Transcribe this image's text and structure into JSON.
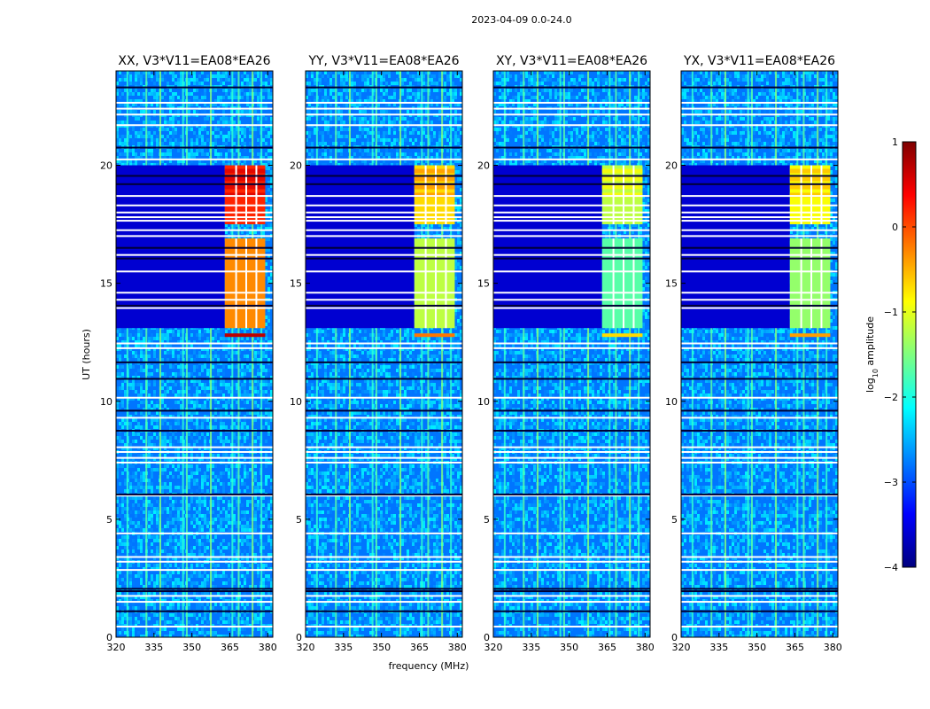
{
  "chart_data": {
    "type": "heatmap",
    "suptitle": "2023-04-09 0.0-24.0",
    "xlabel": "frequency (MHz)",
    "ylabel": "UT (hours)",
    "xlim": [
      320,
      382
    ],
    "ylim": [
      0,
      24
    ],
    "xticks": [
      320,
      335,
      350,
      365,
      380
    ],
    "yticks": [
      0,
      5,
      10,
      15,
      20
    ],
    "panels": [
      {
        "title": "XX, V3*V11=EA08*EA26",
        "burst_level": 0.2
      },
      {
        "title": "YY, V3*V11=EA08*EA26",
        "burst_level": -0.7
      },
      {
        "title": "XY, V3*V11=EA08*EA26",
        "burst_level": -1.2
      },
      {
        "title": "YX, V3*V11=EA08*EA26",
        "burst_level": -0.9
      }
    ],
    "burst_band_mhz": [
      363,
      379
    ],
    "burst_windows_ut": [
      [
        13.1,
        16.9
      ],
      [
        17.5,
        20.0
      ]
    ],
    "burst_subband_gaps_mhz": [
      367.5,
      371.5,
      375.5
    ],
    "strong_line_ut": 12.8,
    "background_level": -2.8,
    "flagged_ut_white": [
      0.45,
      1.5,
      1.75,
      2.85,
      3.2,
      3.4,
      4.4,
      6.0,
      7.4,
      7.6,
      7.85,
      8.05,
      9.3,
      10.15,
      12.25,
      12.45,
      13.95,
      14.3,
      14.6,
      15.5,
      16.2,
      17.0,
      17.25,
      17.65,
      17.8,
      18.0,
      18.3,
      18.7,
      20.25,
      21.7,
      22.15,
      22.4,
      22.65
    ],
    "flagged_ut_dark": [
      1.1,
      1.95,
      2.05,
      6.05,
      8.75,
      9.6,
      10.95,
      11.65,
      14.05,
      16.05,
      16.5,
      19.2,
      19.55,
      20.75,
      23.3
    ],
    "rfi_lines_mhz": [
      324.5,
      332.0,
      337.5,
      346.5,
      348.0,
      357.5,
      366.0,
      368.5,
      374.0,
      377.5
    ],
    "colorbar": {
      "label_prefix": "log",
      "label_sub": "10",
      "label_suffix": " amplitude",
      "min": -4,
      "max": 1,
      "ticks": [
        -4,
        -3,
        -2,
        -1,
        0,
        1
      ],
      "tick_labels": [
        "−4",
        "−3",
        "−2",
        "−1",
        "0",
        "1"
      ],
      "colors": [
        "#00007f",
        "#0000ff",
        "#007fff",
        "#00ffff",
        "#7fff7f",
        "#ffff00",
        "#ff7f00",
        "#ff0000",
        "#7f0000"
      ]
    }
  }
}
